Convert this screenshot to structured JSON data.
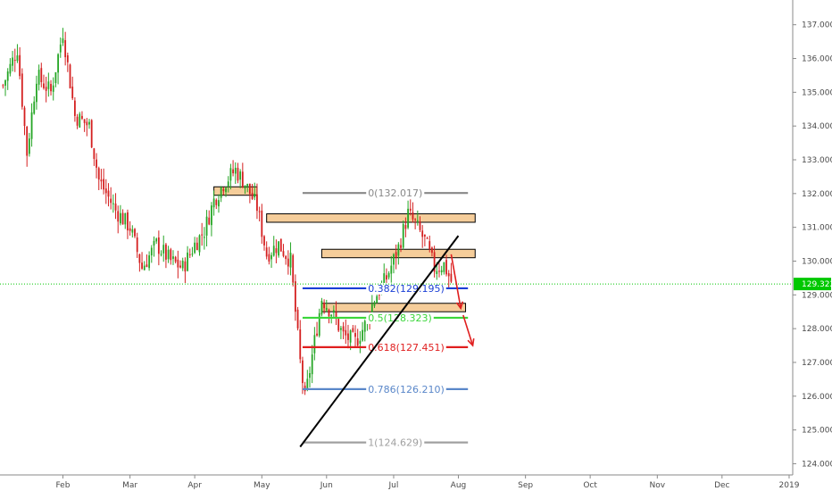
{
  "chart_data": {
    "type": "candlestick",
    "title": "",
    "xlabel": "",
    "ylabel": "",
    "ylim": [
      123.8,
      137.6
    ],
    "y_ticks": [
      "137.000",
      "136.000",
      "135.000",
      "134.000",
      "133.000",
      "132.000",
      "131.000",
      "130.000",
      "129.000",
      "128.000",
      "127.000",
      "126.000",
      "125.000",
      "124.000"
    ],
    "y_tick_values": [
      137,
      136,
      135,
      134,
      133,
      132,
      131,
      130,
      129,
      128,
      127,
      126,
      125,
      124
    ],
    "x_ticks": [
      "Feb",
      "Mar",
      "Apr",
      "May",
      "Jun",
      "Jul",
      "Aug",
      "Sep",
      "Oct",
      "Nov",
      "Dec",
      "2019"
    ],
    "current_price": {
      "label": "129.322",
      "value": 129.322,
      "color": "#00c800"
    },
    "colors": {
      "up": "#26a626",
      "down": "#d42020",
      "zone_fill": "#f5cd9a",
      "zone_border": "#000000"
    },
    "series": [
      {
        "name": "",
        "anchors": [
          {
            "x": 0,
            "y": 135.2
          },
          {
            "x": 6,
            "y": 136.3
          },
          {
            "x": 10,
            "y": 133.2
          },
          {
            "x": 14,
            "y": 135.5
          },
          {
            "x": 20,
            "y": 135.0
          },
          {
            "x": 25,
            "y": 136.8
          },
          {
            "x": 30,
            "y": 134.3
          },
          {
            "x": 36,
            "y": 134.0
          },
          {
            "x": 40,
            "y": 132.4
          },
          {
            "x": 47,
            "y": 131.5
          },
          {
            "x": 53,
            "y": 131.0
          },
          {
            "x": 58,
            "y": 129.8
          },
          {
            "x": 64,
            "y": 130.5
          },
          {
            "x": 70,
            "y": 130.0
          },
          {
            "x": 75,
            "y": 129.8
          },
          {
            "x": 80,
            "y": 130.5
          },
          {
            "x": 84,
            "y": 130.9
          },
          {
            "x": 88,
            "y": 131.8
          },
          {
            "x": 92,
            "y": 132.3
          },
          {
            "x": 97,
            "y": 132.7
          },
          {
            "x": 101,
            "y": 132.3
          },
          {
            "x": 106,
            "y": 131.6
          },
          {
            "x": 110,
            "y": 130.2
          },
          {
            "x": 115,
            "y": 130.5
          },
          {
            "x": 120,
            "y": 130.0
          },
          {
            "x": 124,
            "y": 127.0
          },
          {
            "x": 126,
            "y": 125.9
          },
          {
            "x": 129,
            "y": 127.2
          },
          {
            "x": 133,
            "y": 128.9
          },
          {
            "x": 137,
            "y": 128.5
          },
          {
            "x": 142,
            "y": 127.8
          },
          {
            "x": 147,
            "y": 127.6
          },
          {
            "x": 151,
            "y": 128.1
          },
          {
            "x": 155,
            "y": 128.9
          },
          {
            "x": 160,
            "y": 129.5
          },
          {
            "x": 165,
            "y": 130.4
          },
          {
            "x": 169,
            "y": 131.4
          },
          {
            "x": 172,
            "y": 131.1
          },
          {
            "x": 176,
            "y": 130.6
          },
          {
            "x": 180,
            "y": 129.8
          },
          {
            "x": 184,
            "y": 129.9
          },
          {
            "x": 187,
            "y": 129.4
          }
        ]
      }
    ],
    "zones": [
      {
        "from": 88,
        "to": 106,
        "low": 131.95,
        "high": 132.2
      },
      {
        "from": 110,
        "to": 197,
        "low": 131.15,
        "high": 131.4
      },
      {
        "from": 133,
        "to": 197,
        "low": 130.1,
        "high": 130.35
      },
      {
        "from": 133,
        "to": 193,
        "low": 128.5,
        "high": 128.75
      }
    ],
    "fibonacci": [
      {
        "label": "0(132.017)",
        "value": 132.017,
        "from": 125,
        "to": 194,
        "color": "#888888"
      },
      {
        "label": "0.382(129.195)",
        "value": 129.195,
        "from": 125,
        "to": 194,
        "color": "#1a3fd6"
      },
      {
        "label": "0.5(128.323)",
        "value": 128.323,
        "from": 125,
        "to": 194,
        "color": "#3ad63a"
      },
      {
        "label": "0.618(127.451)",
        "value": 127.451,
        "from": 125,
        "to": 194,
        "color": "#e01f1f"
      },
      {
        "label": "0.786(126.210)",
        "value": 126.21,
        "from": 125,
        "to": 194,
        "color": "#5a87c9"
      },
      {
        "label": "1(124.629)",
        "value": 124.629,
        "from": 125,
        "to": 194,
        "color": "#a0a0a0"
      }
    ],
    "trendline": {
      "from": {
        "x": 124,
        "y": 124.5
      },
      "to": {
        "x": 190,
        "y": 130.75
      },
      "color": "#000000"
    },
    "arrows": [
      {
        "from": {
          "x": 187,
          "y": 130.2
        },
        "to": {
          "x": 191,
          "y": 128.6
        },
        "color": "#e01f1f"
      },
      {
        "from": {
          "x": 192,
          "y": 128.4
        },
        "to": {
          "x": 196,
          "y": 127.5
        },
        "color": "#e01f1f"
      }
    ],
    "grid": false,
    "legend": "none"
  }
}
